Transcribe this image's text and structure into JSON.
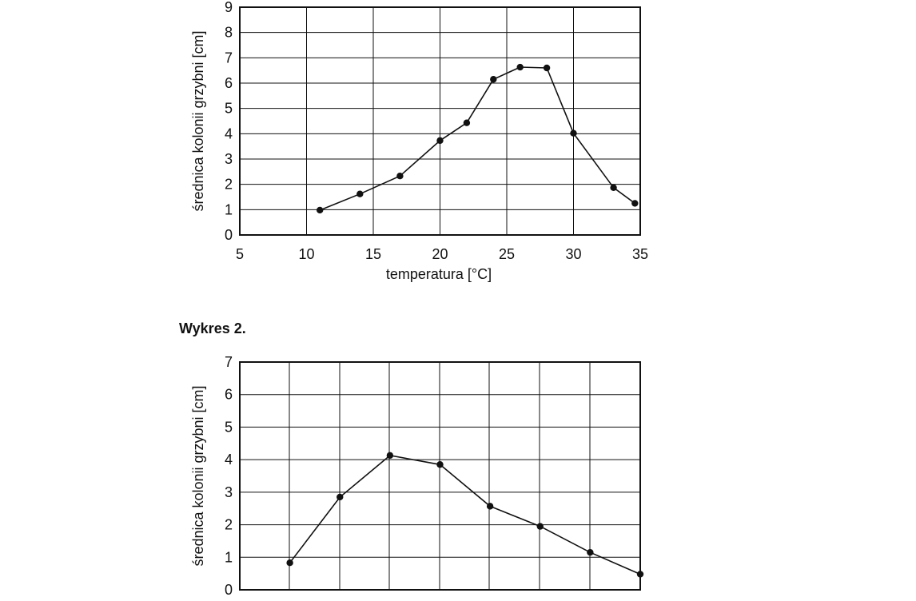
{
  "chart_data": [
    {
      "type": "line",
      "heading": "",
      "xlabel": "temperatura [°C]",
      "ylabel": "średnica kolonii grzybni [cm]",
      "xlim": [
        5,
        35
      ],
      "ylim": [
        0,
        9
      ],
      "xticks": [
        5,
        10,
        15,
        20,
        25,
        30,
        35
      ],
      "yticks": [
        0,
        1,
        2,
        3,
        4,
        5,
        6,
        7,
        8,
        9
      ],
      "grid": true,
      "legend": "none",
      "series": [
        {
          "x": [
            11,
            14,
            17,
            20,
            22,
            24,
            26,
            28,
            30,
            33,
            34.6
          ],
          "y": [
            0.98,
            1.62,
            2.33,
            3.73,
            4.43,
            6.15,
            6.63,
            6.6,
            4.02,
            1.87,
            1.25
          ]
        }
      ]
    },
    {
      "type": "line",
      "heading": "Wykres 2.",
      "xlabel": "",
      "ylabel": "średnica kolonii grzybni [cm]",
      "xlim": [
        4,
        12
      ],
      "ylim": [
        0,
        7
      ],
      "xticks": [],
      "yticks": [
        0,
        1,
        2,
        3,
        4,
        5,
        6,
        7
      ],
      "grid": true,
      "legend": "none",
      "series": [
        {
          "x": [
            5,
            6,
            7,
            8,
            9,
            10,
            11,
            12
          ],
          "y": [
            0.83,
            2.85,
            4.13,
            3.85,
            2.57,
            1.95,
            1.15,
            0.48
          ]
        }
      ]
    }
  ]
}
